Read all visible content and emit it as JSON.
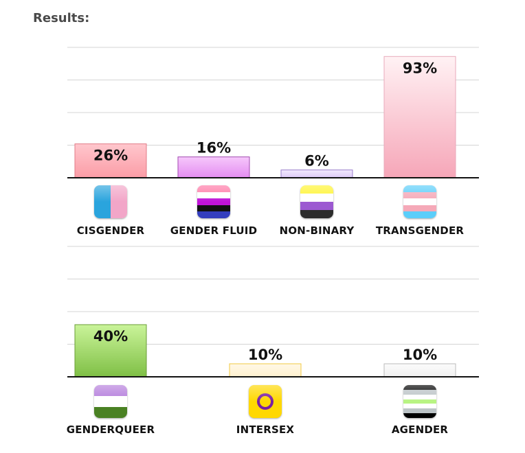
{
  "page": {
    "heading": "Results:"
  },
  "chart_data": [
    {
      "type": "bar",
      "categories": [
        "CISGENDER",
        "GENDER FLUID",
        "NON-BINARY",
        "TRANSGENDER"
      ],
      "values": [
        26,
        16,
        6,
        93
      ],
      "value_labels": [
        "26%",
        "16%",
        "6%",
        "93%"
      ],
      "ylim": [
        0,
        100
      ],
      "grid": true,
      "bar_colors": [
        [
          "#ffc7cd",
          "#fb9ca6"
        ],
        [
          "#f6c8fb",
          "#e48cf1"
        ],
        [
          "#f3eafd",
          "#dcc8f7"
        ],
        [
          "#fff2f4",
          "#f6a6b8"
        ]
      ],
      "bar_borders": [
        "#e27b87",
        "#a24ab0",
        "#9a7fcc",
        "#e8aabb"
      ],
      "icons": [
        "cisgender-flag-icon",
        "genderfluid-flag-icon",
        "nonbinary-flag-icon",
        "transgender-flag-icon"
      ]
    },
    {
      "type": "bar",
      "categories": [
        "GENDERQUEER",
        "INTERSEX",
        "AGENDER"
      ],
      "values": [
        40,
        10,
        10
      ],
      "value_labels": [
        "40%",
        "10%",
        "10%"
      ],
      "ylim": [
        0,
        100
      ],
      "grid": true,
      "bar_colors": [
        [
          "#caf49a",
          "#7fbf45"
        ],
        [
          "#fff8e6",
          "#fff1d0"
        ],
        [
          "#fbfbfb",
          "#f1f1f1"
        ]
      ],
      "bar_borders": [
        "#6a9d37",
        "#f0c842",
        "#bbbbbb"
      ],
      "icons": [
        "genderqueer-flag-icon",
        "intersex-flag-icon",
        "agender-flag-icon"
      ]
    }
  ]
}
